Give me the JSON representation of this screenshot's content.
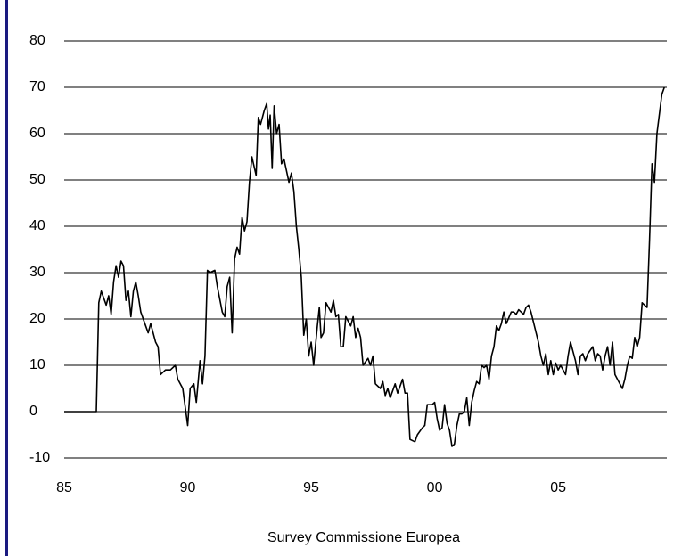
{
  "chart_data": {
    "type": "line",
    "caption": "Survey Commissione Europea",
    "xlim": [
      1985,
      2009.4
    ],
    "xticks": [
      {
        "value": 1985,
        "label": "85"
      },
      {
        "value": 1990,
        "label": "90"
      },
      {
        "value": 1995,
        "label": "95"
      },
      {
        "value": 2000,
        "label": "00"
      },
      {
        "value": 2005,
        "label": "05"
      }
    ],
    "ylim": [
      -10,
      80
    ],
    "yticks": [
      -10,
      0,
      10,
      20,
      30,
      40,
      50,
      60,
      70,
      80
    ],
    "grid": true,
    "x": [
      1985.0,
      1986.3,
      1986.4,
      1986.5,
      1986.7,
      1986.8,
      1986.9,
      1987.0,
      1987.1,
      1987.2,
      1987.3,
      1987.4,
      1987.5,
      1987.6,
      1987.7,
      1987.8,
      1987.9,
      1988.0,
      1988.1,
      1988.3,
      1988.4,
      1988.5,
      1988.7,
      1988.8,
      1988.9,
      1989.1,
      1989.3,
      1989.5,
      1989.6,
      1989.8,
      1990.0,
      1990.1,
      1990.25,
      1990.35,
      1990.5,
      1990.6,
      1990.7,
      1990.8,
      1990.9,
      1991.1,
      1991.2,
      1991.4,
      1991.5,
      1991.6,
      1991.7,
      1991.8,
      1991.9,
      1992.0,
      1992.1,
      1992.2,
      1992.3,
      1992.4,
      1992.5,
      1992.6,
      1992.77,
      1992.86,
      1992.95,
      1993.1,
      1993.2,
      1993.27,
      1993.34,
      1993.42,
      1993.5,
      1993.6,
      1993.7,
      1993.8,
      1993.9,
      1994.1,
      1994.2,
      1994.3,
      1994.4,
      1994.5,
      1994.6,
      1994.7,
      1994.8,
      1994.9,
      1995.0,
      1995.1,
      1995.25,
      1995.33,
      1995.4,
      1995.5,
      1995.6,
      1995.8,
      1995.9,
      1996.0,
      1996.1,
      1996.2,
      1996.3,
      1996.4,
      1996.6,
      1996.7,
      1996.8,
      1996.9,
      1997.0,
      1997.1,
      1997.3,
      1997.4,
      1997.5,
      1997.6,
      1997.8,
      1997.9,
      1998.0,
      1998.1,
      1998.2,
      1998.4,
      1998.5,
      1998.7,
      1998.8,
      1998.9,
      1999.0,
      1999.2,
      1999.3,
      1999.5,
      1999.6,
      1999.7,
      1999.9,
      2000.0,
      2000.1,
      2000.2,
      2000.3,
      2000.4,
      2000.5,
      2000.6,
      2000.7,
      2000.8,
      2000.9,
      2001.0,
      2001.1,
      2001.2,
      2001.3,
      2001.4,
      2001.5,
      2001.6,
      2001.7,
      2001.8,
      2001.9,
      2002.0,
      2002.1,
      2002.2,
      2002.3,
      2002.4,
      2002.5,
      2002.6,
      2002.7,
      2002.8,
      2002.9,
      2003.1,
      2003.2,
      2003.3,
      2003.4,
      2003.6,
      2003.7,
      2003.8,
      2003.9,
      2004.2,
      2004.3,
      2004.4,
      2004.5,
      2004.6,
      2004.7,
      2004.8,
      2004.9,
      2005.0,
      2005.1,
      2005.3,
      2005.4,
      2005.5,
      2005.6,
      2005.7,
      2005.8,
      2005.9,
      2006.0,
      2006.1,
      2006.2,
      2006.4,
      2006.5,
      2006.6,
      2006.7,
      2006.8,
      2006.9,
      2007.0,
      2007.1,
      2007.2,
      2007.3,
      2007.4,
      2007.6,
      2007.7,
      2007.8,
      2007.9,
      2008.0,
      2008.1,
      2008.2,
      2008.3,
      2008.4,
      2008.5,
      2008.6,
      2008.7,
      2008.8,
      2008.9,
      2009.0,
      2009.2,
      2009.3
    ],
    "series": [
      {
        "color": "#000000",
        "values": [
          0,
          0,
          23.5,
          26,
          23,
          25,
          21,
          28,
          31.5,
          29,
          32.5,
          31.5,
          24,
          26,
          20.5,
          26,
          28,
          25,
          21.5,
          18.5,
          17,
          19,
          15,
          14,
          8,
          9,
          9,
          10,
          7,
          5,
          -3,
          5,
          6,
          2,
          11,
          6,
          12,
          30.5,
          30,
          30.5,
          27,
          21.5,
          20.5,
          27,
          29,
          17,
          33,
          35.5,
          34,
          42,
          39,
          41,
          49.5,
          55,
          51,
          63.5,
          62,
          65,
          66.5,
          61,
          64,
          52.5,
          66,
          60,
          62,
          53.5,
          54.5,
          49.5,
          51.5,
          47.5,
          40,
          35,
          29,
          16.5,
          20,
          12,
          15,
          10,
          18.5,
          22.5,
          16,
          17,
          23.5,
          21.5,
          24,
          20.5,
          21,
          14,
          14,
          20.5,
          18.5,
          20.5,
          16,
          18,
          16,
          10,
          11.5,
          10,
          12,
          6,
          5,
          6.5,
          3.5,
          5,
          3,
          6,
          4,
          7,
          4,
          4,
          -6,
          -6.5,
          -5,
          -3.5,
          -3,
          1.5,
          1.5,
          2,
          -1.5,
          -4,
          -3.5,
          1.5,
          -2.5,
          -4,
          -7.5,
          -7,
          -3,
          -0.5,
          -0.5,
          0,
          3,
          -3,
          2,
          4.5,
          6.5,
          6,
          10,
          9.5,
          10,
          7,
          12,
          14,
          18.5,
          17.5,
          19,
          21.5,
          19,
          21.5,
          21.5,
          21,
          22,
          21,
          22.5,
          23,
          21.5,
          15,
          12,
          10,
          12.5,
          8,
          11,
          8,
          10.5,
          9,
          10,
          8,
          12,
          15,
          13,
          11,
          8,
          12,
          12.5,
          11,
          12.5,
          14,
          11,
          12.5,
          12,
          9,
          12,
          14,
          10,
          15,
          8,
          7,
          5,
          7,
          10,
          12,
          11.5,
          16,
          14,
          16,
          23.5,
          23,
          22.5,
          37,
          53.5,
          49.5,
          60,
          68.5,
          70
        ]
      }
    ]
  }
}
